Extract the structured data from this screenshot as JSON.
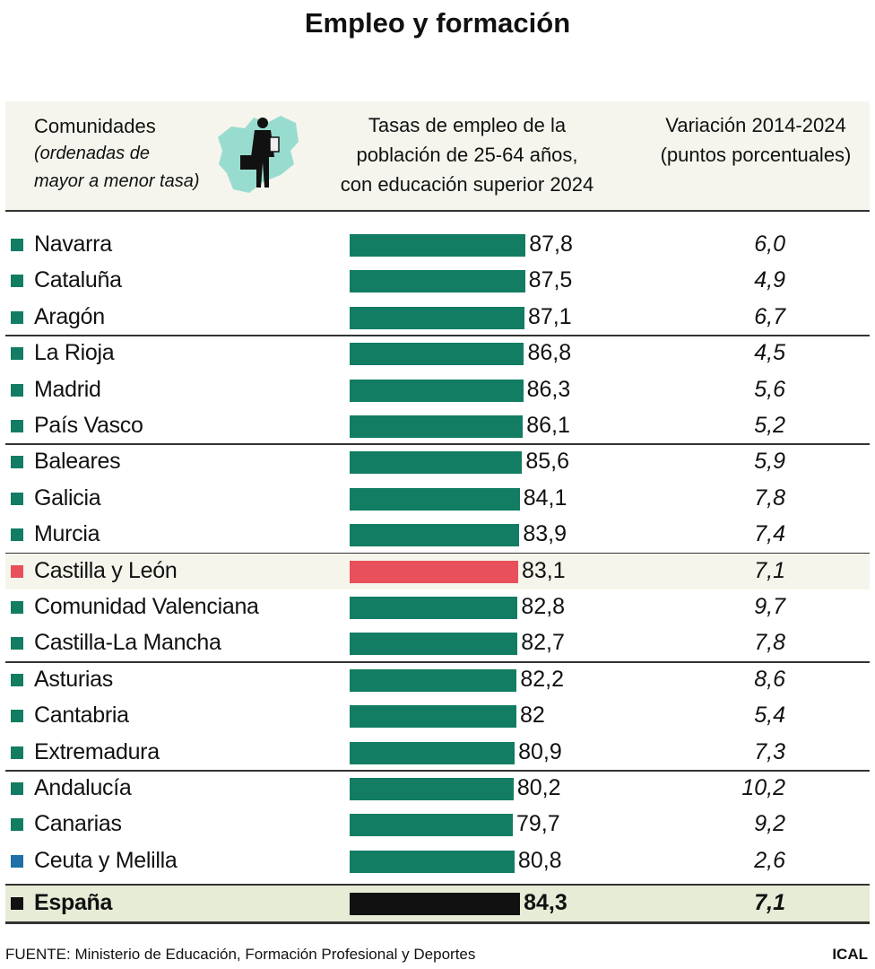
{
  "title": "Empleo y formación",
  "header": {
    "col1_title": "Comunidades",
    "col1_note_1": "(ordenadas de",
    "col1_note_2": "mayor a menor tasa)",
    "col2_line1": "Tasas de empleo de la",
    "col2_line2": "población de 25-64 años,",
    "col2_line3": "con educación superior 2024",
    "col3_line1": "Variación 2014-2024",
    "col3_line2": "(puntos porcentuales)",
    "icon": "person-with-briefcase-over-castilla-y-leon-map"
  },
  "colors": {
    "default": "#127d63",
    "highlight": "#e8505b",
    "ceuta_marker": "#1f6fa8",
    "total": "#111111"
  },
  "chart_data": {
    "type": "table",
    "columns": [
      "Comunidades",
      "Tasas de empleo de la población de 25-64 años, con educación superior 2024",
      "Variación 2014-2024 (puntos porcentuales)"
    ],
    "rows": [
      {
        "name": "Navarra",
        "value": "87,8",
        "variation": "6,0"
      },
      {
        "name": "Cataluña",
        "value": "87,5",
        "variation": "4,9"
      },
      {
        "name": "Aragón",
        "value": "87,1",
        "variation": "6,7"
      },
      {
        "name": "La Rioja",
        "value": "86,8",
        "variation": "4,5"
      },
      {
        "name": "Madrid",
        "value": "86,3",
        "variation": "5,6"
      },
      {
        "name": "País Vasco",
        "value": "86,1",
        "variation": "5,2"
      },
      {
        "name": "Baleares",
        "value": "85,6",
        "variation": "5,9"
      },
      {
        "name": "Galicia",
        "value": "84,1",
        "variation": "7,8"
      },
      {
        "name": "Murcia",
        "value": "83,9",
        "variation": "7,4"
      },
      {
        "name": "Castilla y León",
        "value": "83,1",
        "variation": "7,1",
        "highlight": true
      },
      {
        "name": "Comunidad Valenciana",
        "value": "82,8",
        "variation": "9,7"
      },
      {
        "name": "Castilla-La Mancha",
        "value": "82,7",
        "variation": "7,8"
      },
      {
        "name": "Asturias",
        "value": "82,2",
        "variation": "8,6"
      },
      {
        "name": "Cantabria",
        "value": "82",
        "variation": "5,4"
      },
      {
        "name": "Extremadura",
        "value": "80,9",
        "variation": "7,3"
      },
      {
        "name": "Andalucía",
        "value": "80,2",
        "variation": "10,2"
      },
      {
        "name": "Canarias",
        "value": "79,7",
        "variation": "9,2"
      },
      {
        "name": "Ceuta y Melilla",
        "value": "80,8",
        "variation": "2,6",
        "marker": "ceuta_marker"
      },
      {
        "name": "España",
        "value": "84,3",
        "variation": "7,1",
        "total": true
      }
    ]
  },
  "footer": {
    "source": "FUENTE: Ministerio de Educación, Formación Profesional y Deportes",
    "brand": "ICAL"
  }
}
